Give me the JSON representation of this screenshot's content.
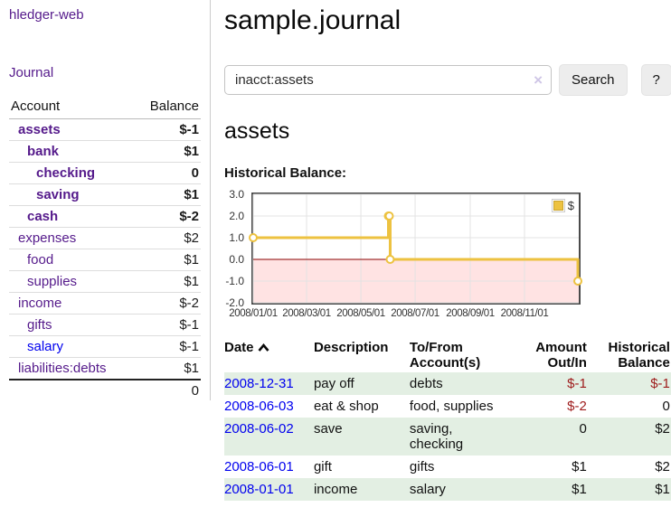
{
  "colors": {
    "link_visited": "#551a8b",
    "link_unvisited": "#0000ee",
    "negative_strong": "#9e1b1b",
    "negative_soft": "#c56c6c",
    "row_stripe_green": "#e3efe3",
    "chart_line": "#edc240"
  },
  "sidebar": {
    "brand": "hledger-web",
    "journal_link": "Journal",
    "accounts": {
      "header_account": "Account",
      "header_balance": "Balance",
      "rows": [
        {
          "name": "assets",
          "balance": "$-1"
        },
        {
          "name": "bank",
          "balance": "$1"
        },
        {
          "name": "checking",
          "balance": "0"
        },
        {
          "name": "saving",
          "balance": "$1"
        },
        {
          "name": "cash",
          "balance": "$-2"
        },
        {
          "name": "expenses",
          "balance": "$2"
        },
        {
          "name": "food",
          "balance": "$1"
        },
        {
          "name": "supplies",
          "balance": "$1"
        },
        {
          "name": "income",
          "balance": "$-2"
        },
        {
          "name": "gifts",
          "balance": "$-1"
        },
        {
          "name": "salary",
          "balance": "$-1"
        },
        {
          "name": "liabilities:debts",
          "balance": "$1"
        }
      ],
      "total": "0"
    }
  },
  "main": {
    "title": "sample.journal",
    "search": {
      "query": "inacct:assets",
      "clear_icon": "×",
      "button_label": "Search",
      "help_label": "?"
    },
    "account_heading": "assets",
    "chart_title": "Historical Balance:"
  },
  "chart_data": {
    "type": "line",
    "step": true,
    "title": "Historical Balance:",
    "series": [
      {
        "name": "$",
        "color": "#edc240",
        "points": [
          {
            "x": "2008-01-01",
            "y": 1
          },
          {
            "x": "2008-06-01",
            "y": 2
          },
          {
            "x": "2008-06-02",
            "y": 2
          },
          {
            "x": "2008-06-03",
            "y": 0
          },
          {
            "x": "2008-12-31",
            "y": -1
          }
        ]
      }
    ],
    "ylim": [
      -2,
      3
    ],
    "xlim": [
      "2008-01-01",
      "2009-01-01"
    ],
    "yticks": [
      "3.0",
      "2.0",
      "1.0",
      "0.0",
      "-1.0",
      "-2.0"
    ],
    "xticks": [
      "2008/01/01",
      "2008/03/01",
      "2008/05/01",
      "2008/07/01",
      "2008/09/01",
      "2008/11/01"
    ],
    "legend": "$",
    "legend_position": "top-right",
    "grid": true,
    "negative_region_color": "rgba(255,0,0,0.11)",
    "zero_line_color": "#8b0000",
    "grid_color": "#e3e3e3"
  },
  "register": {
    "headers": {
      "date": "Date",
      "description": "Description",
      "accounts": "To/From Account(s)",
      "amount": "Amount Out/In",
      "balance": "Historical Balance"
    },
    "rows": [
      {
        "date": "2008-12-31",
        "description": "pay off",
        "accounts": "debts",
        "amount": "$-1",
        "balance": "$-1"
      },
      {
        "date": "2008-06-03",
        "description": "eat & shop",
        "accounts": "food, supplies",
        "amount": "$-2",
        "balance": "0"
      },
      {
        "date": "2008-06-02",
        "description": "save",
        "accounts": "saving, checking",
        "amount": "0",
        "balance": "$2"
      },
      {
        "date": "2008-06-01",
        "description": "gift",
        "accounts": "gifts",
        "amount": "$1",
        "balance": "$2"
      },
      {
        "date": "2008-01-01",
        "description": "income",
        "accounts": "salary",
        "amount": "$1",
        "balance": "$1"
      }
    ]
  }
}
